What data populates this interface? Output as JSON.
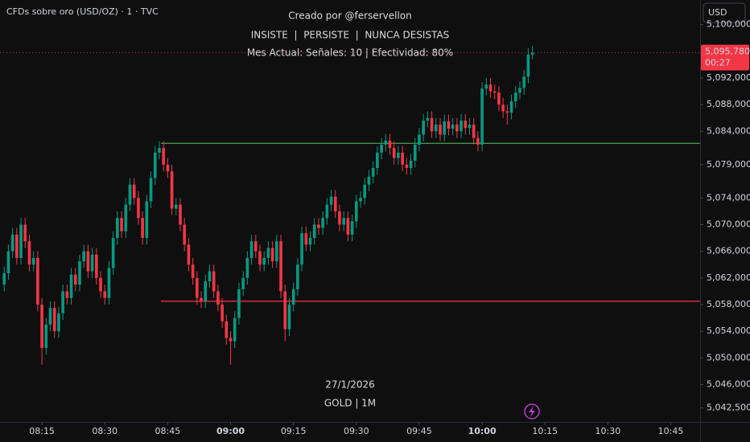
{
  "chart_data": {
    "type": "candlestick",
    "symbol": "CFDs sobre oro (USD/OZ) · 1 · TVC",
    "currency": "USD",
    "title": "Creado por @ferservellon",
    "subtitle": "INSISTE  |  PERSISTE  |  NUNCA DESISTAS",
    "annotation": "Mes Actual: Señales: 10 | Efectividad: 80%",
    "date_label": "27/1/2026",
    "footer": "GOLD | 1M",
    "up_color": "#089981",
    "down_color": "#f23645",
    "x": [
      "08:06",
      "08:07",
      "08:08",
      "08:09",
      "08:10",
      "08:11",
      "08:12",
      "08:13",
      "08:14",
      "08:15",
      "08:16",
      "08:17",
      "08:18",
      "08:19",
      "08:20",
      "08:21",
      "08:22",
      "08:23",
      "08:24",
      "08:25",
      "08:26",
      "08:27",
      "08:28",
      "08:29",
      "08:30",
      "08:31",
      "08:32",
      "08:33",
      "08:34",
      "08:35",
      "08:36",
      "08:37",
      "08:38",
      "08:39",
      "08:40",
      "08:41",
      "08:42",
      "08:43",
      "08:44",
      "08:45",
      "08:46",
      "08:47",
      "08:48",
      "08:49",
      "08:50",
      "08:51",
      "08:52",
      "08:53",
      "08:54",
      "08:55",
      "08:56",
      "08:57",
      "08:58",
      "08:59",
      "09:00",
      "09:01",
      "09:02",
      "09:03",
      "09:04",
      "09:05",
      "09:06",
      "09:07",
      "09:08",
      "09:09",
      "09:10",
      "09:11",
      "09:12",
      "09:13",
      "09:14",
      "09:15",
      "09:16",
      "09:17",
      "09:18",
      "09:19",
      "09:20",
      "09:21",
      "09:22",
      "09:23",
      "09:24",
      "09:25",
      "09:26",
      "09:27",
      "09:28",
      "09:29",
      "09:30",
      "09:31",
      "09:32",
      "09:33",
      "09:34",
      "09:35",
      "09:36",
      "09:37",
      "09:38",
      "09:39",
      "09:40",
      "09:41",
      "09:42",
      "09:43",
      "09:44",
      "09:45",
      "09:46",
      "09:47",
      "09:48",
      "09:49",
      "09:50",
      "09:51",
      "09:52",
      "09:53",
      "09:54",
      "09:55",
      "09:56",
      "09:57",
      "09:58",
      "09:59",
      "10:00",
      "10:01",
      "10:02",
      "10:03",
      "10:04",
      "10:05",
      "10:06",
      "10:07",
      "10:08",
      "10:09",
      "10:10",
      "10:11",
      "10:12"
    ],
    "open": [
      5061.0,
      5062.7,
      5066.0,
      5068.5,
      5065.0,
      5070.0,
      5067.5,
      5064.0,
      5065.0,
      5058.0,
      5051.5,
      5055.0,
      5057.5,
      5054.0,
      5056.7,
      5060.0,
      5059.0,
      5062.5,
      5061.0,
      5064.5,
      5066.0,
      5063.0,
      5065.5,
      5062.0,
      5060.0,
      5059.0,
      5063.5,
      5068.0,
      5071.0,
      5069.0,
      5073.0,
      5076.0,
      5074.0,
      5071.0,
      5068.0,
      5073.5,
      5077.0,
      5080.8,
      5081.5,
      5079.0,
      5078.0,
      5072.4,
      5073.0,
      5070.0,
      5067.0,
      5064.0,
      5062.0,
      5059.0,
      5058.5,
      5061.5,
      5063.0,
      5060.0,
      5058.0,
      5055.5,
      5053.0,
      5052.5,
      5056.0,
      5060.3,
      5062.0,
      5065.0,
      5067.5,
      5066.0,
      5064.0,
      5065.0,
      5066.5,
      5064.5,
      5067.5,
      5060.0,
      5054.3,
      5058.0,
      5060.3,
      5064.0,
      5068.7,
      5067.0,
      5068.0,
      5070.0,
      5069.5,
      5071.0,
      5073.0,
      5074.2,
      5072.0,
      5070.0,
      5071.0,
      5068.5,
      5070.5,
      5073.5,
      5074.0,
      5076.0,
      5077.2,
      5078.5,
      5080.8,
      5082.0,
      5082.6,
      5081.5,
      5080.0,
      5080.8,
      5079.0,
      5078.5,
      5079.6,
      5082.0,
      5083.5,
      5085.6,
      5086.0,
      5084.0,
      5085.0,
      5083.5,
      5085.5,
      5084.4,
      5085.0,
      5084.0,
      5085.6,
      5084.5,
      5085.0,
      5083.0,
      5082.0,
      5090.4,
      5091.0,
      5090.0,
      5089.8,
      5088.0,
      5087.0,
      5086.8,
      5088.5,
      5089.8,
      5090.5,
      5092.2,
      5095.5
    ],
    "high": [
      5063.7,
      5067.0,
      5069.5,
      5069.5,
      5071.0,
      5071.0,
      5068.5,
      5066.0,
      5066.0,
      5059.0,
      5056.0,
      5058.5,
      5058.5,
      5057.7,
      5061.0,
      5061.0,
      5063.5,
      5063.5,
      5065.5,
      5067.0,
      5067.0,
      5066.5,
      5066.5,
      5063.0,
      5061.0,
      5064.5,
      5069.0,
      5072.0,
      5072.0,
      5074.0,
      5077.0,
      5077.0,
      5075.0,
      5072.0,
      5074.5,
      5078.0,
      5081.8,
      5082.5,
      5082.5,
      5080.0,
      5079.0,
      5074.0,
      5074.0,
      5071.0,
      5068.0,
      5065.0,
      5063.0,
      5060.0,
      5062.5,
      5064.0,
      5064.0,
      5061.0,
      5059.0,
      5056.5,
      5054.0,
      5057.0,
      5061.3,
      5063.0,
      5066.0,
      5068.5,
      5068.5,
      5067.0,
      5066.0,
      5067.5,
      5067.5,
      5068.5,
      5068.5,
      5061.0,
      5059.0,
      5061.3,
      5065.0,
      5069.7,
      5069.7,
      5069.0,
      5071.0,
      5071.0,
      5072.0,
      5074.0,
      5075.2,
      5075.2,
      5073.0,
      5072.0,
      5072.0,
      5071.5,
      5074.5,
      5075.0,
      5077.0,
      5078.2,
      5079.5,
      5081.8,
      5083.0,
      5083.6,
      5083.6,
      5082.5,
      5081.8,
      5081.8,
      5080.0,
      5080.6,
      5083.0,
      5084.5,
      5086.6,
      5087.0,
      5087.0,
      5086.0,
      5086.0,
      5086.5,
      5086.5,
      5086.0,
      5086.0,
      5086.6,
      5086.6,
      5086.0,
      5086.0,
      5084.0,
      5091.4,
      5092.0,
      5092.0,
      5091.0,
      5090.8,
      5089.0,
      5088.0,
      5089.5,
      5090.8,
      5091.5,
      5093.2,
      5096.5,
      5096.8
    ],
    "low": [
      5060.0,
      5061.7,
      5065.0,
      5064.0,
      5064.0,
      5066.5,
      5063.0,
      5063.0,
      5057.0,
      5049.0,
      5050.5,
      5054.0,
      5053.0,
      5053.0,
      5055.7,
      5058.0,
      5058.0,
      5060.0,
      5060.0,
      5063.5,
      5062.0,
      5062.0,
      5061.0,
      5059.0,
      5058.0,
      5058.0,
      5062.5,
      5067.0,
      5068.0,
      5068.0,
      5072.0,
      5073.0,
      5070.0,
      5067.0,
      5067.0,
      5072.5,
      5076.0,
      5079.8,
      5078.0,
      5077.0,
      5071.4,
      5071.4,
      5069.0,
      5066.0,
      5063.0,
      5061.0,
      5058.0,
      5057.5,
      5057.5,
      5060.5,
      5059.0,
      5057.0,
      5054.5,
      5052.0,
      5049.0,
      5051.5,
      5055.0,
      5059.3,
      5061.0,
      5064.0,
      5065.0,
      5063.0,
      5063.0,
      5064.0,
      5063.5,
      5063.5,
      5059.0,
      5052.5,
      5053.3,
      5057.0,
      5059.3,
      5063.0,
      5066.0,
      5066.0,
      5067.0,
      5068.5,
      5068.5,
      5070.0,
      5072.0,
      5071.0,
      5069.0,
      5069.0,
      5067.5,
      5067.5,
      5069.5,
      5072.5,
      5073.0,
      5075.0,
      5076.2,
      5077.5,
      5079.8,
      5081.0,
      5080.5,
      5079.0,
      5079.0,
      5078.0,
      5077.5,
      5077.5,
      5078.6,
      5081.0,
      5082.5,
      5084.6,
      5083.0,
      5083.0,
      5082.5,
      5082.5,
      5083.4,
      5083.4,
      5083.0,
      5083.0,
      5083.5,
      5083.5,
      5082.0,
      5081.0,
      5081.0,
      5089.4,
      5089.0,
      5088.8,
      5087.0,
      5086.0,
      5085.0,
      5085.8,
      5087.5,
      5088.8,
      5089.5,
      5091.2,
      5094.8
    ],
    "close": [
      5062.7,
      5066.0,
      5068.5,
      5065.0,
      5070.0,
      5067.5,
      5064.0,
      5065.0,
      5058.0,
      5051.5,
      5055.0,
      5057.5,
      5054.0,
      5056.7,
      5060.0,
      5059.0,
      5062.5,
      5061.0,
      5064.5,
      5066.0,
      5063.0,
      5065.5,
      5062.0,
      5060.0,
      5059.0,
      5063.5,
      5068.0,
      5071.0,
      5069.0,
      5073.0,
      5076.0,
      5074.0,
      5071.0,
      5068.0,
      5073.5,
      5077.0,
      5080.8,
      5081.5,
      5079.0,
      5078.0,
      5072.4,
      5073.0,
      5070.0,
      5067.0,
      5064.0,
      5062.0,
      5059.0,
      5058.5,
      5061.5,
      5063.0,
      5060.0,
      5058.0,
      5055.5,
      5053.0,
      5052.5,
      5056.0,
      5060.3,
      5062.0,
      5065.0,
      5067.5,
      5066.0,
      5064.0,
      5065.0,
      5066.5,
      5064.5,
      5067.5,
      5060.0,
      5054.3,
      5058.0,
      5060.3,
      5064.0,
      5068.7,
      5067.0,
      5068.0,
      5070.0,
      5069.5,
      5071.0,
      5073.0,
      5074.2,
      5072.0,
      5070.0,
      5071.0,
      5068.5,
      5070.5,
      5073.5,
      5074.0,
      5076.0,
      5077.2,
      5078.5,
      5080.8,
      5082.0,
      5082.6,
      5081.5,
      5080.0,
      5080.8,
      5079.0,
      5078.5,
      5079.6,
      5082.0,
      5083.5,
      5085.6,
      5086.0,
      5084.0,
      5085.0,
      5083.5,
      5085.5,
      5084.4,
      5085.0,
      5084.0,
      5085.6,
      5084.5,
      5085.0,
      5083.0,
      5082.0,
      5090.4,
      5091.0,
      5090.0,
      5089.8,
      5088.0,
      5087.0,
      5086.8,
      5088.5,
      5089.8,
      5090.5,
      5092.2,
      5095.5,
      5095.78
    ],
    "lines": [
      {
        "value": 5082.2,
        "color": "#4caf50"
      },
      {
        "value": 5058.5,
        "color": "#f23645"
      }
    ],
    "last_price": {
      "value": 5095.78,
      "label": "5,095,780"
    },
    "countdown": "00:27",
    "xlim": [
      "08:05",
      "10:52"
    ],
    "xticks": [
      "08:15",
      "08:30",
      "08:45",
      "09:00",
      "09:15",
      "09:30",
      "09:45",
      "10:00",
      "10:15",
      "10:30",
      "10:45"
    ],
    "xticks_bold": [
      false,
      false,
      false,
      true,
      false,
      false,
      false,
      true,
      false,
      false,
      false
    ],
    "ylim": [
      5040.4,
      5103.7
    ],
    "yticks": [
      {
        "value": 5100,
        "label": "5,100,000"
      },
      {
        "value": 5092,
        "label": "5,092,000"
      },
      {
        "value": 5088,
        "label": "5,088,000"
      },
      {
        "value": 5084,
        "label": "5,084,000"
      },
      {
        "value": 5079,
        "label": "5,079,000"
      },
      {
        "value": 5074,
        "label": "5,074,000"
      },
      {
        "value": 5070,
        "label": "5,070,000"
      },
      {
        "value": 5066,
        "label": "5,066,000"
      },
      {
        "value": 5062,
        "label": "5,062,000"
      },
      {
        "value": 5058,
        "label": "5,058,000"
      },
      {
        "value": 5054,
        "label": "5,054,000"
      },
      {
        "value": 5050,
        "label": "5,050,000"
      },
      {
        "value": 5046,
        "label": "5,046,000"
      },
      {
        "value": 5042.5,
        "label": "5,042,500"
      }
    ]
  }
}
